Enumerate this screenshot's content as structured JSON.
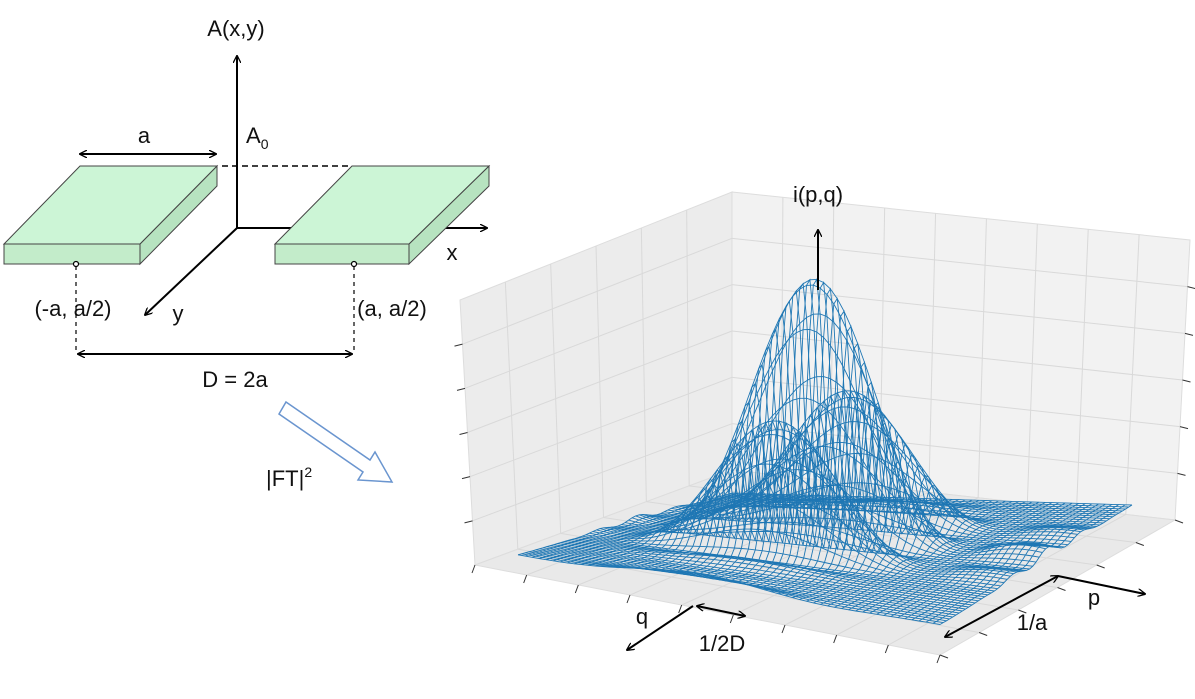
{
  "aperture": {
    "amplitude_axis_label": "A(x,y)",
    "amplitude_level_label": "A",
    "amplitude_level_subscript": "0",
    "width_label": "a",
    "x_axis_label": "x",
    "y_axis_label": "y",
    "left_center_label": "(-a, a/2)",
    "right_center_label": "(a, a/2)",
    "separation_label": "D = 2a"
  },
  "transform": {
    "label": "|FT|",
    "superscript": "2"
  },
  "pattern": {
    "intensity_axis_label": "i(p,q)",
    "p_axis_label": "p",
    "q_axis_label": "q",
    "envelope_width_label": "1/a",
    "fringe_spacing_label": "1/2D"
  },
  "colors": {
    "slit_top": "#ccf5d6",
    "slit_side": "#b7e3c0",
    "mesh": "#1f77b4",
    "grid": "#d9d9d9",
    "pane": "#f2f2f2",
    "arrow": "#6a95cf"
  }
}
